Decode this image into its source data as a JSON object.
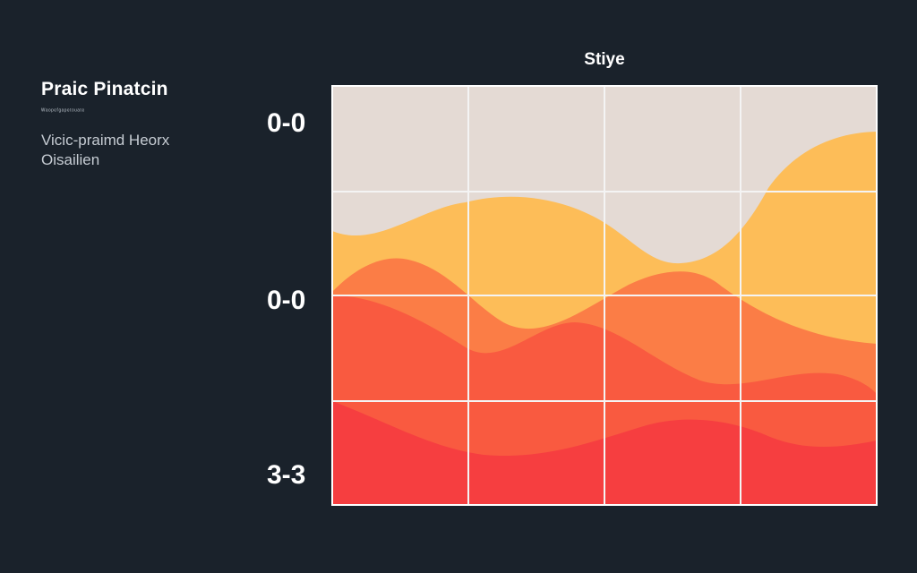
{
  "panel": {
    "title": "Praic Pinatcin",
    "tagline": "ᵂᵃᵒᵖᵉᶠᵍᵃᵖᵉᵗᵒᵘᵃᵗᵉ",
    "desc_line1": "Vicic-praimd Heorx",
    "desc_line2": "Oisailien"
  },
  "chart_data": {
    "type": "area",
    "title": "Stiye",
    "y_tick_labels": [
      "0-0",
      "0-0",
      "3-3"
    ],
    "x_tick_labels": [],
    "grid": true,
    "legend": "none",
    "colors": {
      "background": "#e4dad4",
      "layer_1": "#fdbd58",
      "layer_2": "#fb7d46",
      "layer_3": "#f95a40",
      "layer_4": "#f63e40",
      "grid": "#f4f4f4",
      "frame": "#ffffff"
    }
  }
}
